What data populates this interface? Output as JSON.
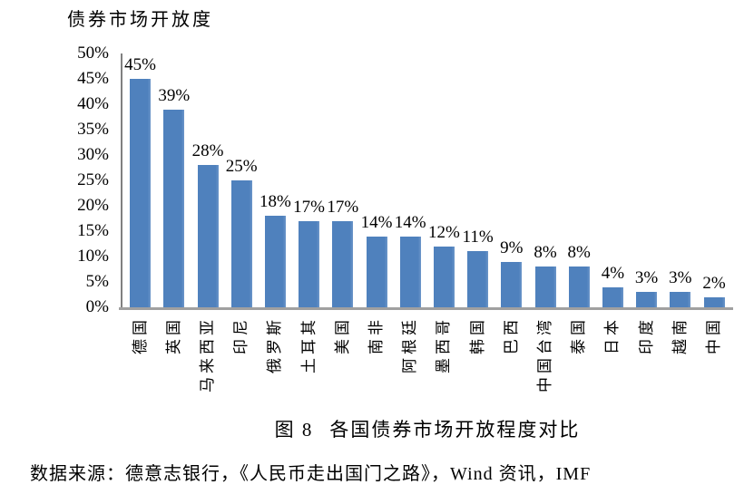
{
  "page": {
    "background": "#ffffff"
  },
  "chart_data": {
    "type": "bar",
    "title": "债券市场开放度",
    "categories": [
      "德国",
      "英国",
      "马来西亚",
      "印尼",
      "俄罗斯",
      "土耳其",
      "美国",
      "南非",
      "阿根廷",
      "墨西哥",
      "韩国",
      "巴西",
      "中国台湾",
      "泰国",
      "日本",
      "印度",
      "越南",
      "中国"
    ],
    "values": [
      45,
      39,
      28,
      25,
      18,
      17,
      17,
      14,
      14,
      12,
      11,
      9,
      8,
      8,
      4,
      3,
      3,
      2
    ],
    "bar_labels": [
      "45%",
      "39%",
      "28%",
      "25%",
      "18%",
      "17%",
      "17%",
      "14%",
      "14%",
      "12%",
      "11%",
      "9%",
      "8%",
      "8%",
      "4%",
      "3%",
      "3%",
      "2%"
    ],
    "y_ticks": [
      "0%",
      "5%",
      "10%",
      "15%",
      "20%",
      "25%",
      "30%",
      "35%",
      "40%",
      "45%",
      "50%"
    ],
    "ylim": [
      0,
      50
    ],
    "xlabel": "",
    "ylabel": "",
    "grid": false,
    "legend_position": "none",
    "x_label_orientation": "vertical-bottom-to-top",
    "bar_color": "#4F81BD",
    "bar_edge_color": "#6C96C9",
    "axis_color": "#808080",
    "baseline_color": "#A0A0A0",
    "text_color": "#000000"
  },
  "caption": {
    "label": "图 8",
    "title": "各国债券市场开放程度对比"
  },
  "source_line": "数据来源：德意志银行，《人民币走出国门之路》，Wind 资讯，IMF"
}
